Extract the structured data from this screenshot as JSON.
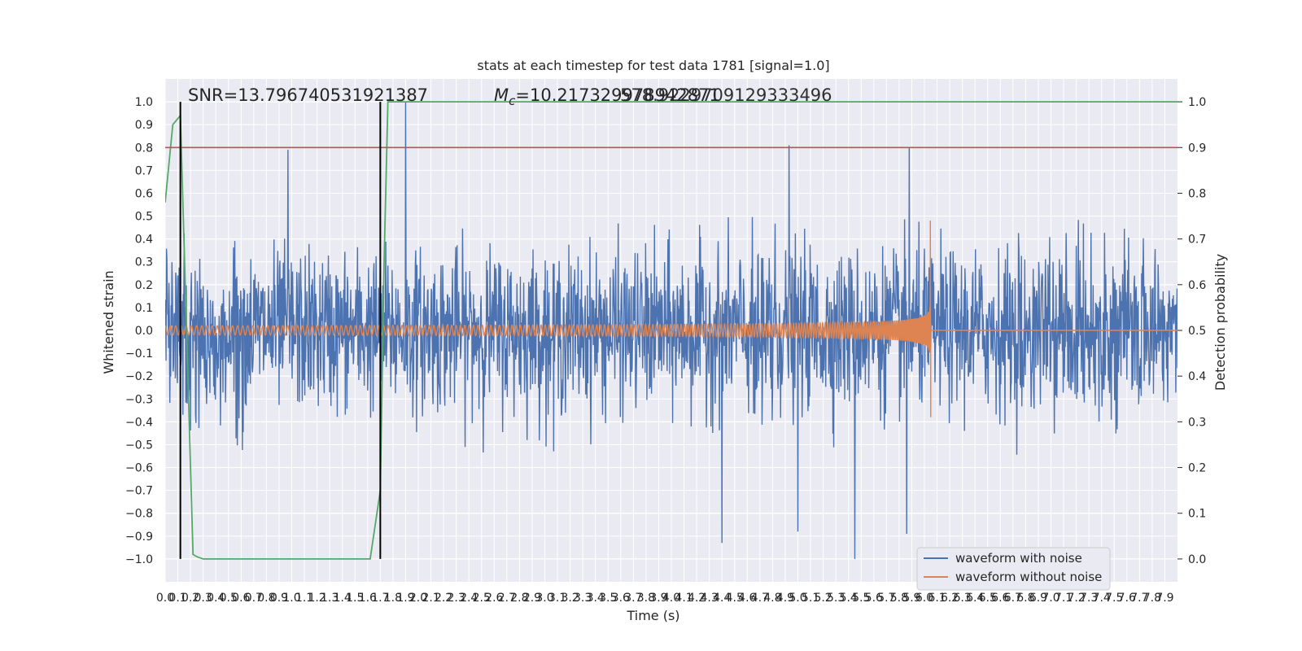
{
  "chart_data": {
    "type": "line",
    "title": "stats at each timestep for test data 1781 [signal=1.0]",
    "xlabel": "Time (s)",
    "ylabel": "Whitened strain",
    "ylabel_right": "Detection probability",
    "xlim": [
      0.0,
      8.0
    ],
    "ylim": [
      -1.1,
      1.1
    ],
    "ylim_right": [
      -0.05,
      1.05
    ],
    "x_ticks": [
      0.0,
      0.1,
      0.2,
      0.3,
      0.4,
      0.5,
      0.6,
      0.7,
      0.8,
      0.9,
      1.0,
      1.1,
      1.2,
      1.3,
      1.4,
      1.5,
      1.6,
      1.7,
      1.8,
      1.9,
      2.0,
      2.1,
      2.2,
      2.3,
      2.4,
      2.5,
      2.6,
      2.7,
      2.8,
      2.9,
      3.0,
      3.1,
      3.2,
      3.3,
      3.4,
      3.5,
      3.6,
      3.7,
      3.8,
      3.9,
      4.0,
      4.1,
      4.2,
      4.3,
      4.4,
      4.5,
      4.6,
      4.7,
      4.8,
      4.9,
      5.0,
      5.1,
      5.2,
      5.3,
      5.4,
      5.5,
      5.6,
      5.7,
      5.8,
      5.9,
      6.0,
      6.1,
      6.2,
      6.3,
      6.4,
      6.5,
      6.6,
      6.7,
      6.8,
      6.9,
      7.0,
      7.1,
      7.2,
      7.3,
      7.4,
      7.5,
      7.6,
      7.7,
      7.8,
      7.9
    ],
    "x_tick_labels": [
      "0.0",
      "0.1",
      "0.2",
      "0.3",
      "0.4",
      "0.5",
      "0.6",
      "0.7",
      "0.8",
      "0.9",
      "1.0",
      "1.1",
      "1.2",
      "1.3",
      "1.4",
      "1.5",
      "1.6",
      "1.7",
      "1.8",
      "1.9",
      "2.0",
      "2.1",
      "2.2",
      "2.3",
      "2.4",
      "2.5",
      "2.6",
      "2.7",
      "2.8",
      "2.9",
      "3.0",
      "3.1",
      "3.2",
      "3.3",
      "3.4",
      "3.5",
      "3.6",
      "3.7",
      "3.8",
      "3.9",
      "4.0",
      "4.1",
      "4.2",
      "4.3",
      "4.4",
      "4.5",
      "4.6",
      "4.7",
      "4.8",
      "4.9",
      "5.0",
      "5.1",
      "5.2",
      "5.3",
      "5.4",
      "5.5",
      "5.6",
      "5.7",
      "5.8",
      "5.9",
      "6.0",
      "6.1",
      "6.2",
      "6.3",
      "6.4",
      "6.5",
      "6.6",
      "6.7",
      "6.8",
      "6.9",
      "7.0",
      "7.1",
      "7.2",
      "7.3",
      "7.4",
      "7.5",
      "7.6",
      "7.7",
      "7.8",
      "7.9"
    ],
    "y_ticks": [
      1.0,
      0.9,
      0.8,
      0.7,
      0.6,
      0.5,
      0.4,
      0.3,
      0.2,
      0.1,
      0.0,
      -0.1,
      -0.2,
      -0.3,
      -0.4,
      -0.5,
      -0.6,
      -0.7,
      -0.8,
      -0.9,
      -1.0
    ],
    "y_tick_labels": [
      "1.0",
      "0.9",
      "0.8",
      "0.7",
      "0.6",
      "0.5",
      "0.4",
      "0.3",
      "0.2",
      "0.1",
      "0.0",
      "−0.1",
      "−0.2",
      "−0.3",
      "−0.4",
      "−0.5",
      "−0.6",
      "−0.7",
      "−0.8",
      "−0.9",
      "−1.0"
    ],
    "y_ticks_right": [
      1.0,
      0.9,
      0.8,
      0.7,
      0.6,
      0.5,
      0.4,
      0.3,
      0.2,
      0.1,
      0.0
    ],
    "y_tick_labels_right": [
      "1.0",
      "0.9",
      "0.8",
      "0.7",
      "0.6",
      "0.5",
      "0.4",
      "0.3",
      "0.2",
      "0.1",
      "0.0"
    ],
    "annotations": {
      "snr": "SNR=13.796740531921387",
      "mc_prefix": "M",
      "mc_sub": "c",
      "mc_value": "=10.217329978942871",
      "overlap": "578.9229709129333496"
    },
    "series": [
      {
        "name": "waveform with noise",
        "color": "#4c72b0",
        "description": "noisy whitened strain, amplitude mostly within ±0.5, peaks to ~±1.0",
        "peaks": [
          [
            1.9,
            1.0
          ],
          [
            0.97,
            0.79
          ],
          [
            4.93,
            0.81
          ],
          [
            5.88,
            0.8
          ],
          [
            5.45,
            -1.0
          ],
          [
            4.4,
            -0.93
          ],
          [
            5.0,
            -0.88
          ],
          [
            5.86,
            -0.89
          ]
        ],
        "envelope_top": 0.5,
        "envelope_bottom": -0.55
      },
      {
        "name": "waveform without noise",
        "color": "#dd8452",
        "description": "chirp signal growing in amplitude and frequency until merger at ~6.05 s",
        "merger_time": 6.05,
        "merger_peak": 0.48,
        "merger_trough": -0.38,
        "start_amplitude": 0.02
      },
      {
        "name": "detection probability",
        "color": "#55a868",
        "axis": "right",
        "x": [
          0.0,
          0.06,
          0.12,
          0.22,
          0.25,
          0.3,
          1.62,
          1.7,
          1.73,
          1.76,
          8.0
        ],
        "y": [
          0.78,
          0.95,
          0.97,
          0.01,
          0.005,
          0.0,
          0.0,
          0.15,
          0.65,
          1.0,
          1.0
        ]
      },
      {
        "name": "threshold",
        "color": "#c44e52",
        "axis": "right",
        "value": 0.9
      }
    ],
    "vlines": [
      {
        "x": 0.12,
        "color": "#000000"
      },
      {
        "x": 1.7,
        "color": "#000000"
      }
    ],
    "legend": {
      "placement": "lower-right",
      "entries": [
        "waveform with noise",
        "waveform without noise"
      ]
    },
    "grid": true,
    "background": "#eaeaf2"
  }
}
